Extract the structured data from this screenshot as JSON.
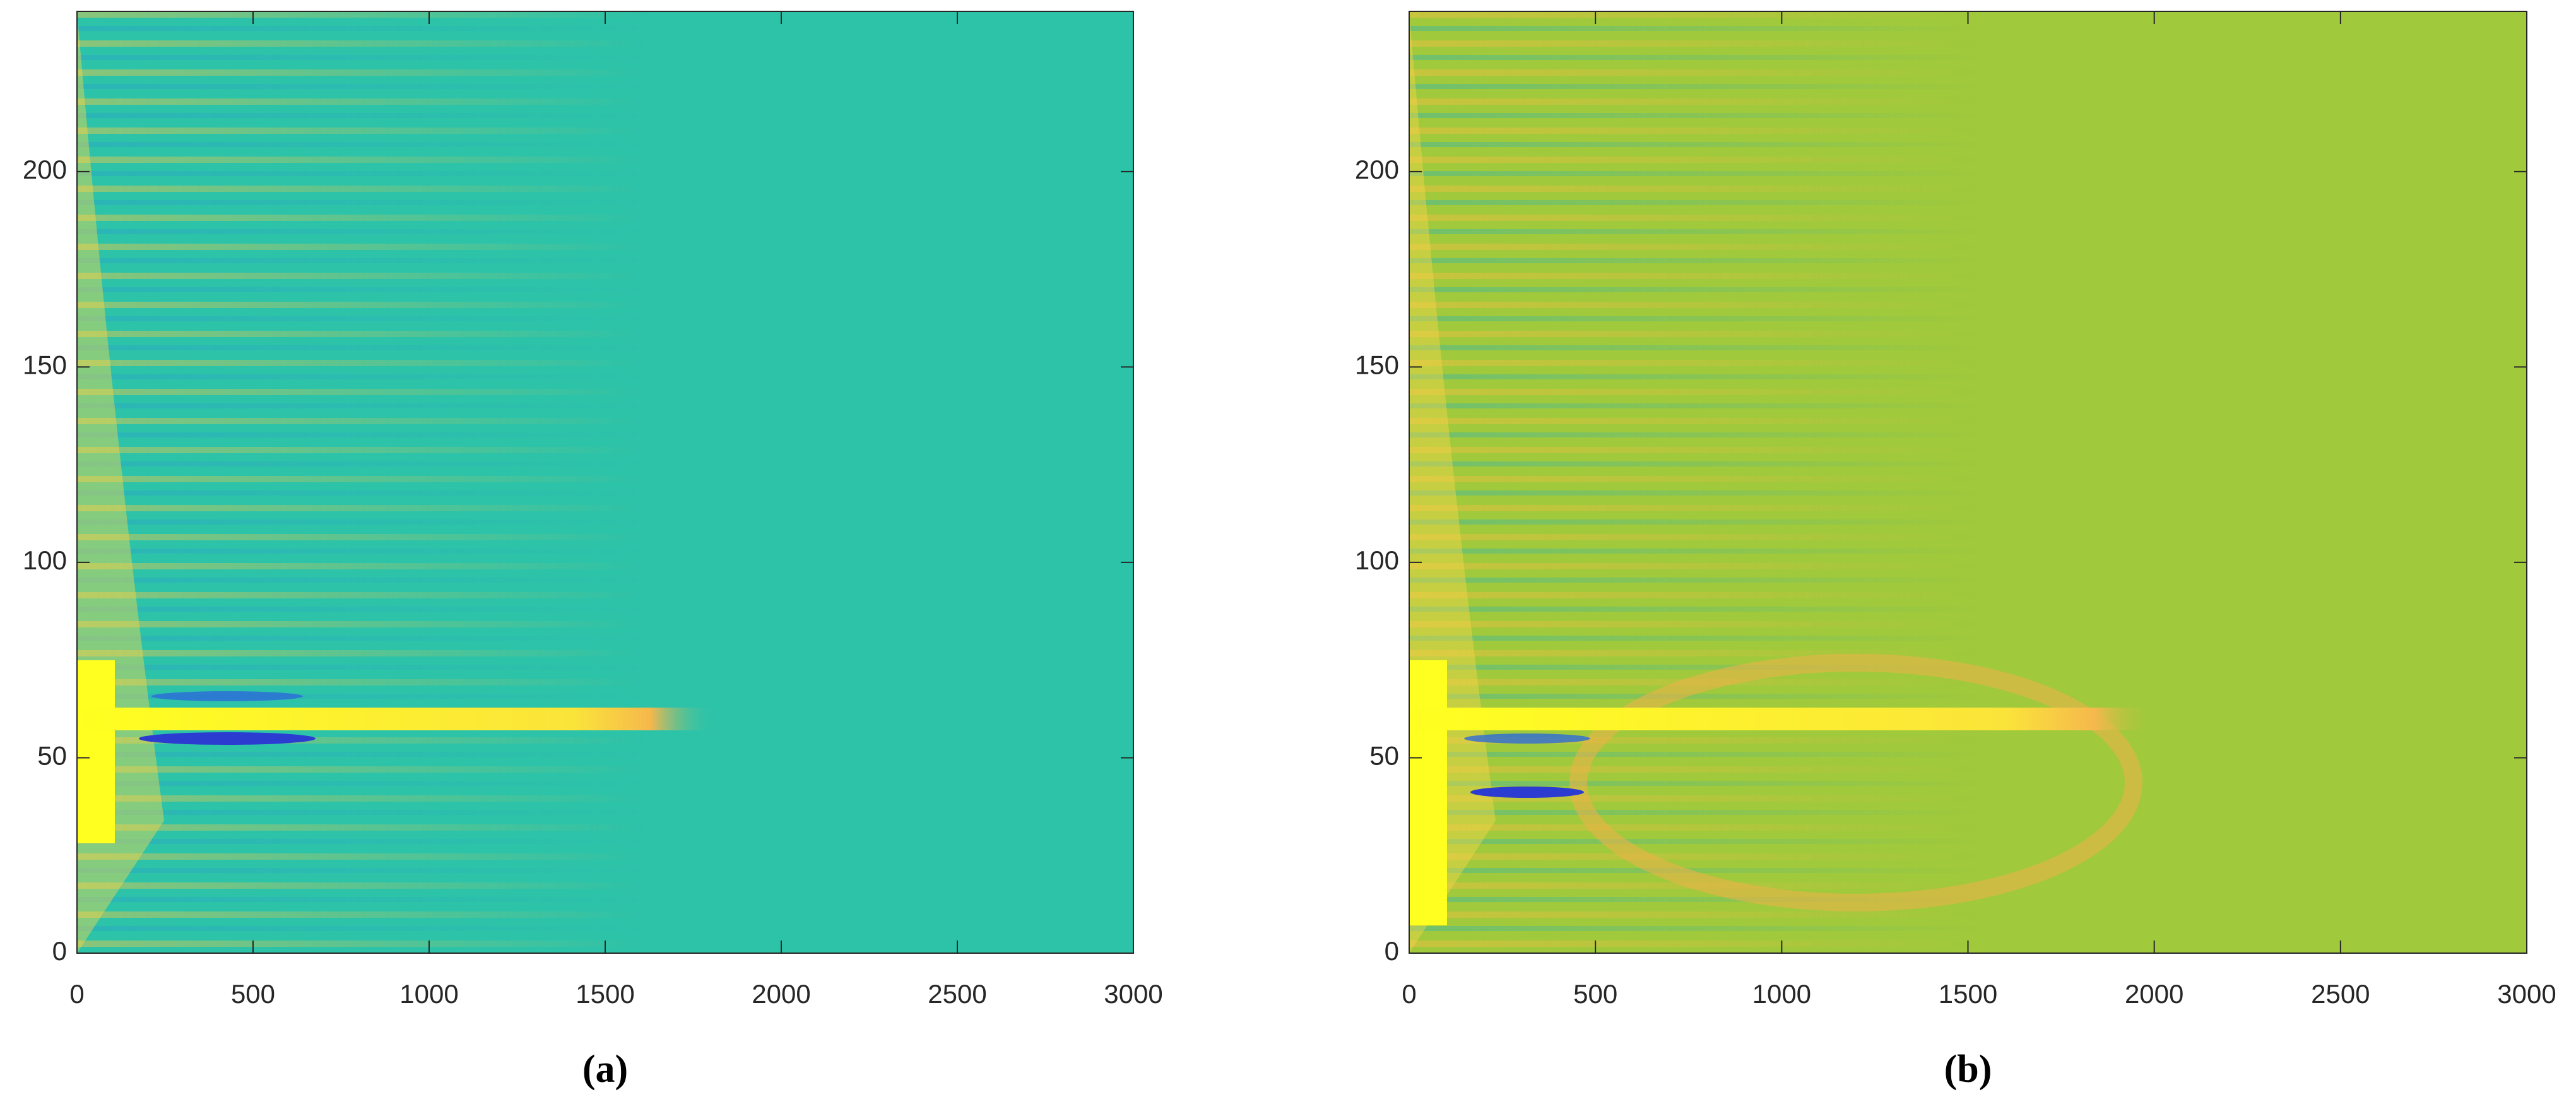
{
  "chart_data": [
    {
      "type": "heatmap",
      "caption": "(a)",
      "background": "#2dc3a9",
      "xlim": [
        0,
        3000
      ],
      "ylim": [
        0,
        241
      ],
      "xticks": [
        0,
        500,
        1000,
        1500,
        2000,
        2500,
        3000
      ],
      "yticks": [
        0,
        50,
        100,
        150,
        200
      ]
    },
    {
      "type": "heatmap",
      "caption": "(b)",
      "background": "#a0c93c",
      "xlim": [
        0,
        3000
      ],
      "ylim": [
        0,
        241
      ],
      "xticks": [
        0,
        500,
        1000,
        1500,
        2000,
        2500,
        3000
      ],
      "yticks": [
        0,
        50,
        100,
        150,
        200
      ]
    }
  ]
}
